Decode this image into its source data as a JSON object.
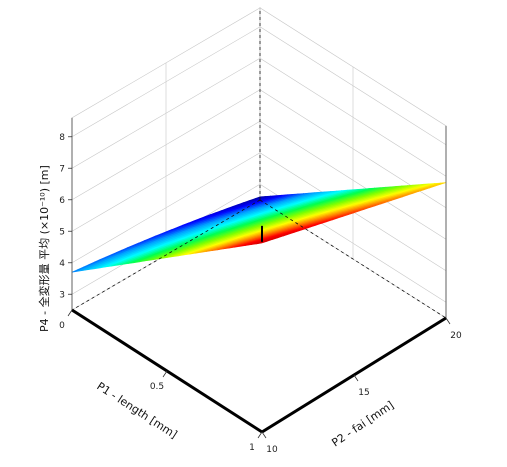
{
  "chart_data": {
    "type": "surface3d",
    "title": "",
    "xlabel": "P1 - length [mm]",
    "ylabel": "P2 - fai [mm]",
    "zlabel": "P4 - 全変形量 平均 (×10⁻¹⁰) [m]",
    "xlim": [
      0,
      1
    ],
    "ylim": [
      10,
      20
    ],
    "zlim": [
      2.5,
      8.6
    ],
    "x_ticks": [
      "0",
      "0.5",
      "1"
    ],
    "y_ticks": [
      "10",
      "15",
      "20"
    ],
    "z_ticks": [
      "3",
      "4",
      "5",
      "6",
      "7",
      "8"
    ],
    "x_tick_values": [
      0,
      0.5,
      1
    ],
    "y_tick_values": [
      10,
      15,
      20
    ],
    "z_tick_values": [
      3,
      4,
      5,
      6,
      7,
      8
    ],
    "corner_values": [
      {
        "x": 0,
        "y": 10,
        "z": 3.7
      },
      {
        "x": 1,
        "y": 10,
        "z": 8.5
      },
      {
        "x": 1,
        "y": 20,
        "z": 6.8
      },
      {
        "x": 0,
        "y": 20,
        "z": 2.6
      }
    ],
    "colormap": [
      "#00008c",
      "#0000ff",
      "#00a0ff",
      "#00ffff",
      "#00ff50",
      "#80ff00",
      "#ffff00",
      "#ff8000",
      "#ff0000",
      "#c80000"
    ],
    "grid": true
  }
}
